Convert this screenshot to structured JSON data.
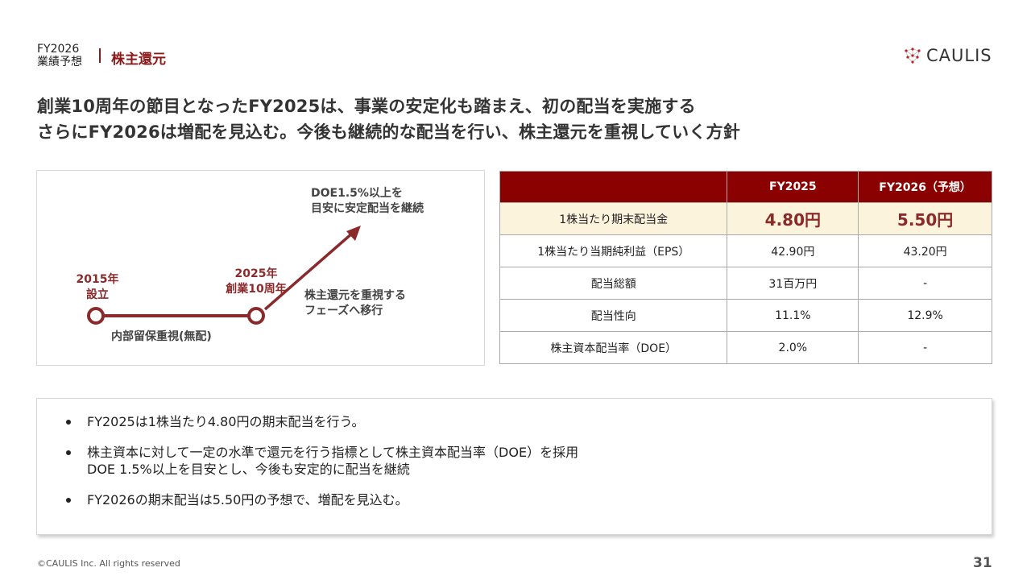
{
  "header": {
    "section_top": "FY2026",
    "section_bottom": "業績予想",
    "title": "株主還元",
    "logo": "CAULIS"
  },
  "headline": [
    "創業10周年の節目となったFY2025は、事業の安定化も踏まえ、初の配当を実施する",
    "さらにFY2026は増配を見込む。今後も継続的な配当を行い、株主還元を重視していく方針"
  ],
  "timeline": {
    "start_year": "2015年",
    "start_label": "設立",
    "mid_year": "2025年",
    "mid_label": "創業10周年",
    "phase1": "内部留保重視(無配)",
    "phase2_l1": "株主還元を重視する",
    "phase2_l2": "フェーズへ移行",
    "goal_l1": "DOE1.5%以上を",
    "goal_l2": "目安に安定配当を継続",
    "accent": "#8b2a2a"
  },
  "table": {
    "headers": [
      "",
      "FY2025",
      "FY2026（予想）"
    ],
    "rows": [
      [
        "1株当たり期末配当金",
        "4.80円",
        "5.50円"
      ],
      [
        "1株当たり当期純利益（EPS）",
        "42.90円",
        "43.20円"
      ],
      [
        "配当総額",
        "31百万円",
        "-"
      ],
      [
        "配当性向",
        "11.1%",
        "12.9%"
      ],
      [
        "株主資本配当率（DOE）",
        "2.0%",
        "-"
      ]
    ]
  },
  "bullets": [
    "FY2025は1株当たり4.80円の期末配当を行う。",
    "株主資本に対して一定の水準で還元を行う指標として株主資本配当率（DOE）を採用",
    "DOE 1.5%以上を目安とし、今後も安定的に配当を継続",
    "FY2026の期末配当は5.50円の予想で、増配を見込む。"
  ],
  "footer": {
    "copyright": "©CAULIS Inc. All rights reserved",
    "page": "31"
  }
}
